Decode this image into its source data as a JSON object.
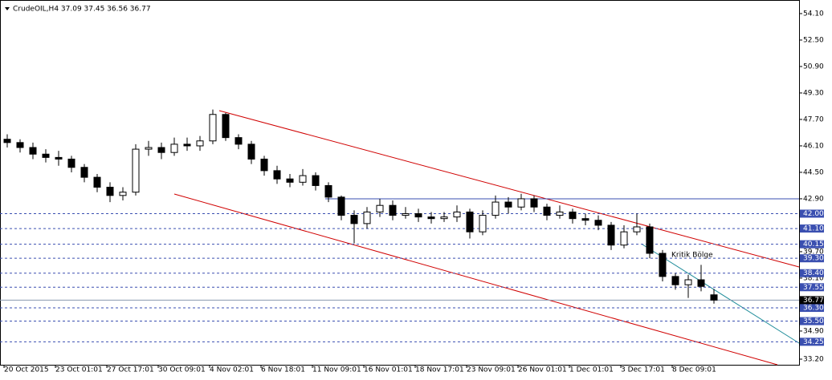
{
  "chart_data": {
    "type": "candlestick",
    "title": "CrudeOIL,H4 37.09 37.45 36.56 36.77",
    "annotation": "Kritik Bölge",
    "categories": [
      "20 Oct 2015",
      null,
      null,
      null,
      "23 Oct 01:01",
      null,
      null,
      null,
      "27 Oct 17:01",
      null,
      null,
      null,
      "30 Oct 09:01",
      null,
      null,
      null,
      "4 Nov 02:01",
      null,
      null,
      null,
      "6 Nov 18:01",
      null,
      null,
      null,
      "11 Nov 09:01",
      null,
      null,
      null,
      "16 Nov 01:01",
      null,
      null,
      null,
      "18 Nov 17:01",
      null,
      null,
      null,
      "23 Nov 09:01",
      null,
      null,
      null,
      "26 Nov 01:01",
      null,
      null,
      null,
      "1 Dec 01:01",
      null,
      null,
      null,
      "3 Dec 17:01",
      null,
      null,
      null,
      "8 Dec 09:01",
      null,
      null,
      null
    ],
    "open": [
      46.5,
      46.3,
      46.0,
      45.6,
      45.4,
      45.3,
      44.8,
      44.2,
      43.6,
      43.1,
      43.3,
      45.9,
      46.0,
      45.7,
      46.2,
      46.1,
      46.4,
      48.0,
      46.6,
      46.2,
      45.3,
      44.6,
      44.1,
      43.9,
      44.3,
      43.7,
      43.0,
      41.9,
      41.4,
      42.1,
      42.5,
      41.9,
      42.0,
      41.8,
      41.7,
      41.8,
      42.1,
      40.9,
      41.9,
      42.7,
      42.4,
      42.9,
      42.4,
      41.9,
      42.1,
      41.7,
      41.6,
      41.3,
      40.1,
      40.9,
      41.2,
      39.6,
      38.2,
      37.7,
      38.0,
      37.09
    ],
    "high": [
      46.8,
      46.5,
      46.3,
      45.9,
      45.8,
      45.5,
      45.0,
      44.4,
      43.9,
      43.6,
      46.2,
      46.4,
      46.3,
      46.6,
      46.6,
      46.7,
      48.3,
      48.1,
      46.8,
      46.4,
      45.5,
      44.9,
      44.4,
      44.7,
      44.5,
      43.9,
      43.1,
      42.2,
      42.4,
      42.9,
      42.8,
      42.4,
      42.3,
      42.1,
      42.1,
      42.5,
      42.3,
      42.2,
      43.1,
      43.0,
      43.2,
      43.1,
      42.6,
      42.5,
      42.3,
      42.0,
      41.9,
      41.5,
      41.3,
      42.0,
      41.4,
      39.8,
      38.4,
      38.3,
      38.9,
      37.45
    ],
    "low": [
      46.0,
      45.7,
      45.3,
      45.1,
      44.9,
      44.5,
      43.9,
      43.3,
      42.7,
      42.8,
      43.1,
      45.5,
      45.3,
      45.5,
      45.8,
      45.8,
      46.2,
      46.4,
      45.9,
      45.0,
      44.3,
      43.8,
      43.6,
      43.7,
      43.4,
      42.7,
      41.6,
      40.2,
      41.1,
      41.8,
      41.6,
      41.7,
      41.5,
      41.4,
      41.5,
      41.5,
      40.5,
      40.7,
      41.7,
      42.0,
      42.2,
      42.1,
      41.6,
      41.7,
      41.4,
      41.3,
      41.0,
      39.8,
      39.9,
      40.7,
      39.3,
      37.9,
      37.4,
      36.9,
      37.3,
      36.56
    ],
    "close": [
      46.3,
      46.0,
      45.6,
      45.4,
      45.3,
      44.8,
      44.2,
      43.6,
      43.1,
      43.3,
      45.9,
      46.0,
      45.7,
      46.2,
      46.1,
      46.4,
      48.0,
      46.6,
      46.2,
      45.3,
      44.6,
      44.1,
      43.9,
      44.3,
      43.7,
      43.0,
      41.9,
      41.4,
      42.1,
      42.5,
      41.9,
      42.0,
      41.8,
      41.7,
      41.8,
      42.1,
      40.9,
      41.9,
      42.7,
      42.4,
      42.9,
      42.4,
      41.9,
      42.1,
      41.7,
      41.6,
      41.3,
      40.1,
      40.9,
      41.2,
      39.6,
      38.2,
      37.7,
      38.0,
      37.6,
      36.77
    ],
    "ylim": [
      32.86,
      54.68
    ],
    "yticks": [
      {
        "value": 54.1,
        "label": "54.10"
      },
      {
        "value": 52.5,
        "label": "52.50"
      },
      {
        "value": 50.9,
        "label": "50.90"
      },
      {
        "value": 49.3,
        "label": "49.30"
      },
      {
        "value": 47.7,
        "label": "47.70"
      },
      {
        "value": 46.1,
        "label": "46.10"
      },
      {
        "value": 44.5,
        "label": "44.50"
      },
      {
        "value": 42.9,
        "label": "42.90"
      },
      {
        "value": 39.7,
        "label": "39.70"
      },
      {
        "value": 38.1,
        "label": "38.10"
      },
      {
        "value": 34.9,
        "label": "34.90"
      },
      {
        "value": 33.2,
        "label": "33.20"
      }
    ],
    "levels": [
      {
        "value": 42.0,
        "label": "42.00"
      },
      {
        "value": 41.1,
        "label": "41.10"
      },
      {
        "value": 40.15,
        "label": "40.15"
      },
      {
        "value": 39.3,
        "label": "39.30"
      },
      {
        "value": 38.4,
        "label": "38.40"
      },
      {
        "value": 37.55,
        "label": "37.55"
      },
      {
        "value": 36.3,
        "label": "36.30"
      },
      {
        "value": 35.5,
        "label": "35.50"
      },
      {
        "value": 34.25,
        "label": "34.25"
      }
    ],
    "level_color": "#3a4fb0",
    "horizontal_line": 42.9,
    "current_price": {
      "value": 36.77,
      "label": "36.77"
    }
  }
}
